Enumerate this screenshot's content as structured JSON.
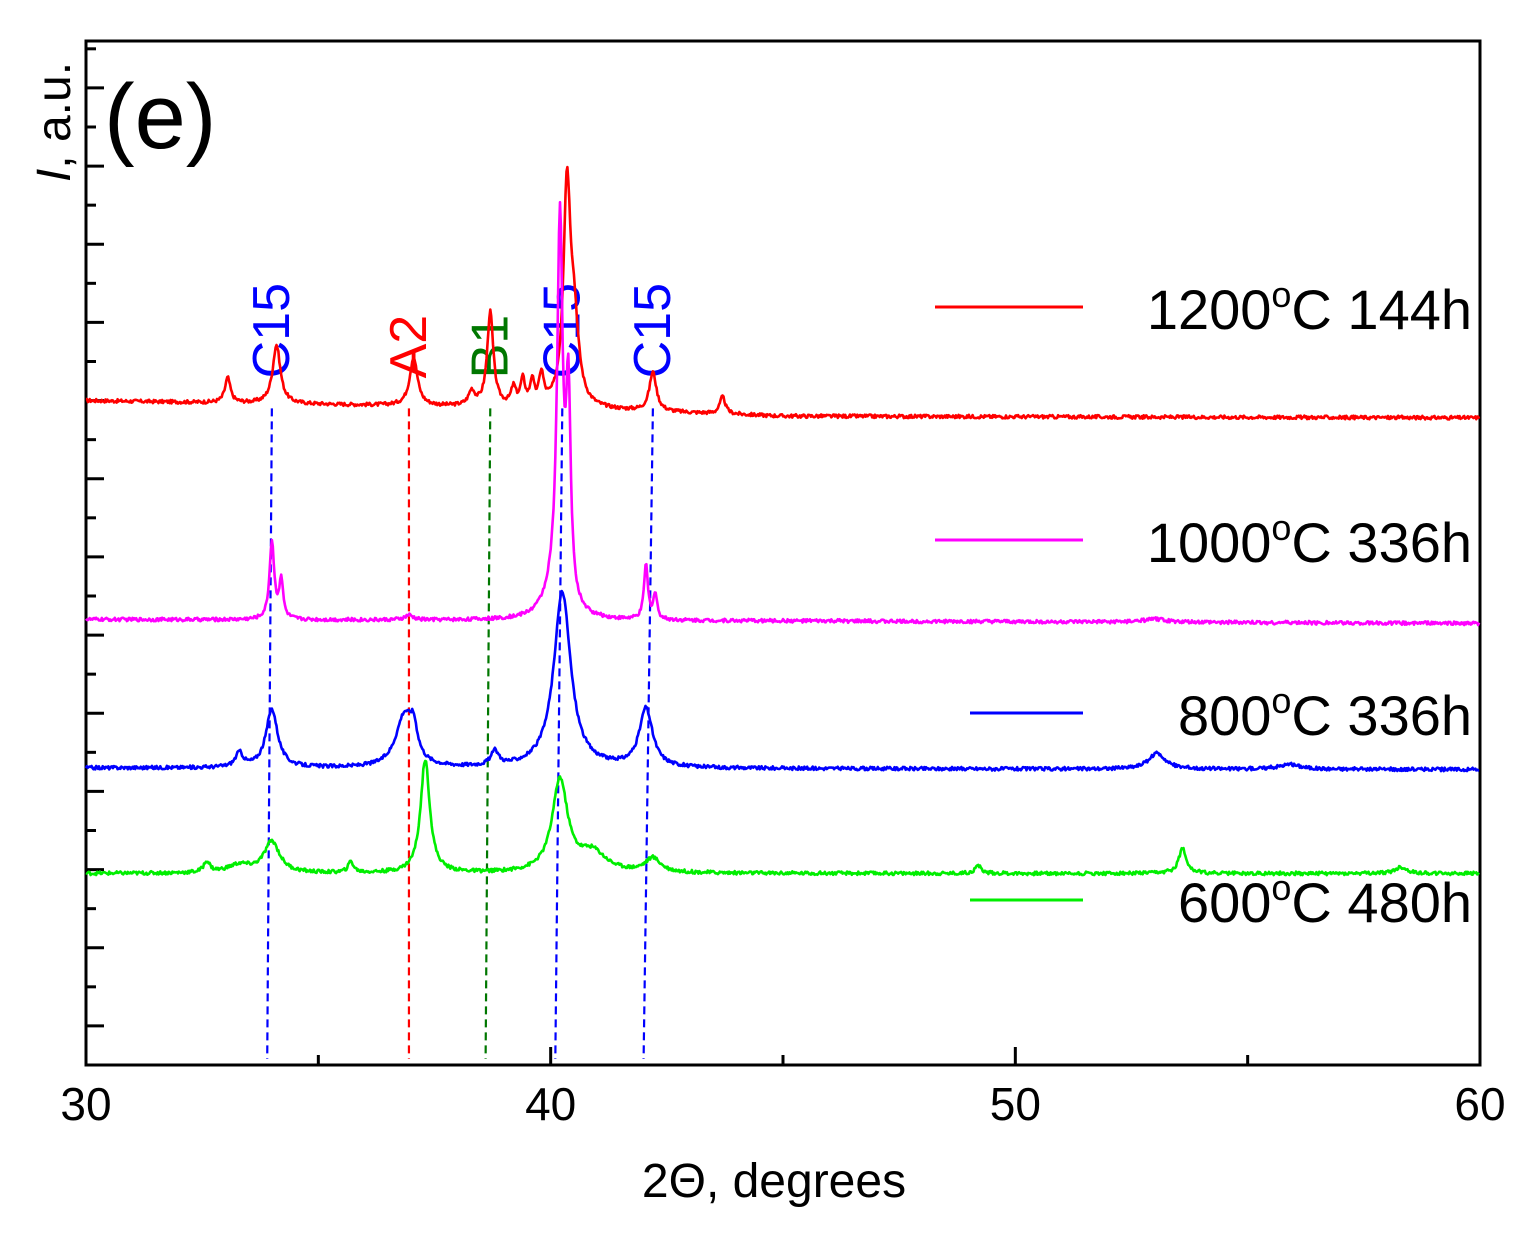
{
  "chart_data": {
    "type": "line",
    "panel_label": "(e)",
    "xlabel": "2Θ, degrees",
    "ylabel_italic": "I",
    "ylabel_rest": ", a.u.",
    "xlim": [
      30,
      60
    ],
    "xticks": [
      30,
      40,
      50,
      60
    ],
    "xtick_labels": [
      "30",
      "40",
      "50",
      "60"
    ],
    "yticks_labeled": false,
    "series": [
      {
        "name": "1200°C 144h",
        "legend_main": "1200",
        "legend_sup": "o",
        "legend_tail": "C 144h",
        "color": "#ff0000",
        "baseline": [
          [
            30,
            6.0
          ],
          [
            35,
            5.95
          ],
          [
            40,
            5.9
          ],
          [
            45,
            5.8
          ],
          [
            60,
            5.78
          ]
        ],
        "peaks": [
          [
            33.05,
            0.32,
            0.07
          ],
          [
            34.1,
            0.75,
            0.1
          ],
          [
            37.05,
            0.62,
            0.1
          ],
          [
            38.3,
            0.18,
            0.08
          ],
          [
            38.7,
            1.2,
            0.08
          ],
          [
            39.2,
            0.22,
            0.06
          ],
          [
            39.4,
            0.32,
            0.06
          ],
          [
            39.6,
            0.3,
            0.05
          ],
          [
            39.8,
            0.38,
            0.06
          ],
          [
            40.35,
            2.7,
            0.09
          ],
          [
            40.5,
            1.0,
            0.12
          ],
          [
            42.2,
            0.5,
            0.09
          ],
          [
            43.7,
            0.22,
            0.07
          ]
        ]
      },
      {
        "name": "1000°C 336h",
        "legend_main": "1000",
        "legend_sup": "o",
        "legend_tail": "C 336h",
        "color": "#ff00ff",
        "baseline": [
          [
            30,
            3.2
          ],
          [
            45,
            3.18
          ],
          [
            60,
            3.15
          ]
        ],
        "peaks": [
          [
            34.0,
            1.0,
            0.06
          ],
          [
            34.2,
            0.5,
            0.05
          ],
          [
            36.95,
            0.06,
            0.1
          ],
          [
            40.2,
            4.75,
            0.07
          ],
          [
            40.38,
            2.6,
            0.06
          ],
          [
            40.1,
            0.4,
            0.25
          ],
          [
            42.05,
            0.7,
            0.05
          ],
          [
            42.25,
            0.32,
            0.05
          ],
          [
            53.0,
            0.04,
            0.3
          ]
        ]
      },
      {
        "name": "800°C 336h",
        "legend_main": "800",
        "legend_sup": "o",
        "legend_tail": "C 336h",
        "color": "#0000ff",
        "baseline": [
          [
            30,
            1.3
          ],
          [
            60,
            1.28
          ]
        ],
        "peaks": [
          [
            33.3,
            0.18,
            0.1
          ],
          [
            34.0,
            0.75,
            0.15
          ],
          [
            36.85,
            0.65,
            0.22
          ],
          [
            37.05,
            0.35,
            0.1
          ],
          [
            38.8,
            0.18,
            0.1
          ],
          [
            40.25,
            2.25,
            0.22
          ],
          [
            42.05,
            0.75,
            0.17
          ],
          [
            53.05,
            0.2,
            0.22
          ],
          [
            55.9,
            0.06,
            0.3
          ]
        ]
      },
      {
        "name": "600°C 480h",
        "legend_main": "600",
        "legend_sup": "o",
        "legend_tail": "C 480h",
        "color": "#00ee00",
        "baseline": [
          [
            30,
            -0.05
          ],
          [
            60,
            -0.05
          ]
        ],
        "peaks": [
          [
            32.6,
            0.14,
            0.08
          ],
          [
            33.3,
            0.1,
            0.3
          ],
          [
            34.0,
            0.4,
            0.2
          ],
          [
            35.7,
            0.14,
            0.07
          ],
          [
            37.3,
            1.45,
            0.12
          ],
          [
            40.2,
            1.18,
            0.2
          ],
          [
            40.9,
            0.25,
            0.35
          ],
          [
            42.2,
            0.18,
            0.2
          ],
          [
            49.2,
            0.1,
            0.08
          ],
          [
            53.6,
            0.32,
            0.1
          ],
          [
            58.3,
            0.08,
            0.15
          ]
        ]
      }
    ],
    "ref_lines": [
      {
        "label": "C15",
        "color": "#0000ff",
        "x_top": 34.0,
        "x_bottom": 33.9,
        "top_y": 5.9
      },
      {
        "label": "A2",
        "color": "#ff0000",
        "x_top": 36.95,
        "x_bottom": 36.95,
        "top_y": 5.9
      },
      {
        "label": "B1",
        "color": "#007700",
        "x_top": 38.7,
        "x_bottom": 38.6,
        "top_y": 5.9
      },
      {
        "label": "C15",
        "color": "#0000ff",
        "x_top": 40.25,
        "x_bottom": 40.1,
        "top_y": 5.9
      },
      {
        "label": "C15",
        "color": "#0000ff",
        "x_top": 42.2,
        "x_bottom": 42.0,
        "top_y": 5.9
      }
    ],
    "ylim": [
      -2.5,
      10.6
    ]
  }
}
